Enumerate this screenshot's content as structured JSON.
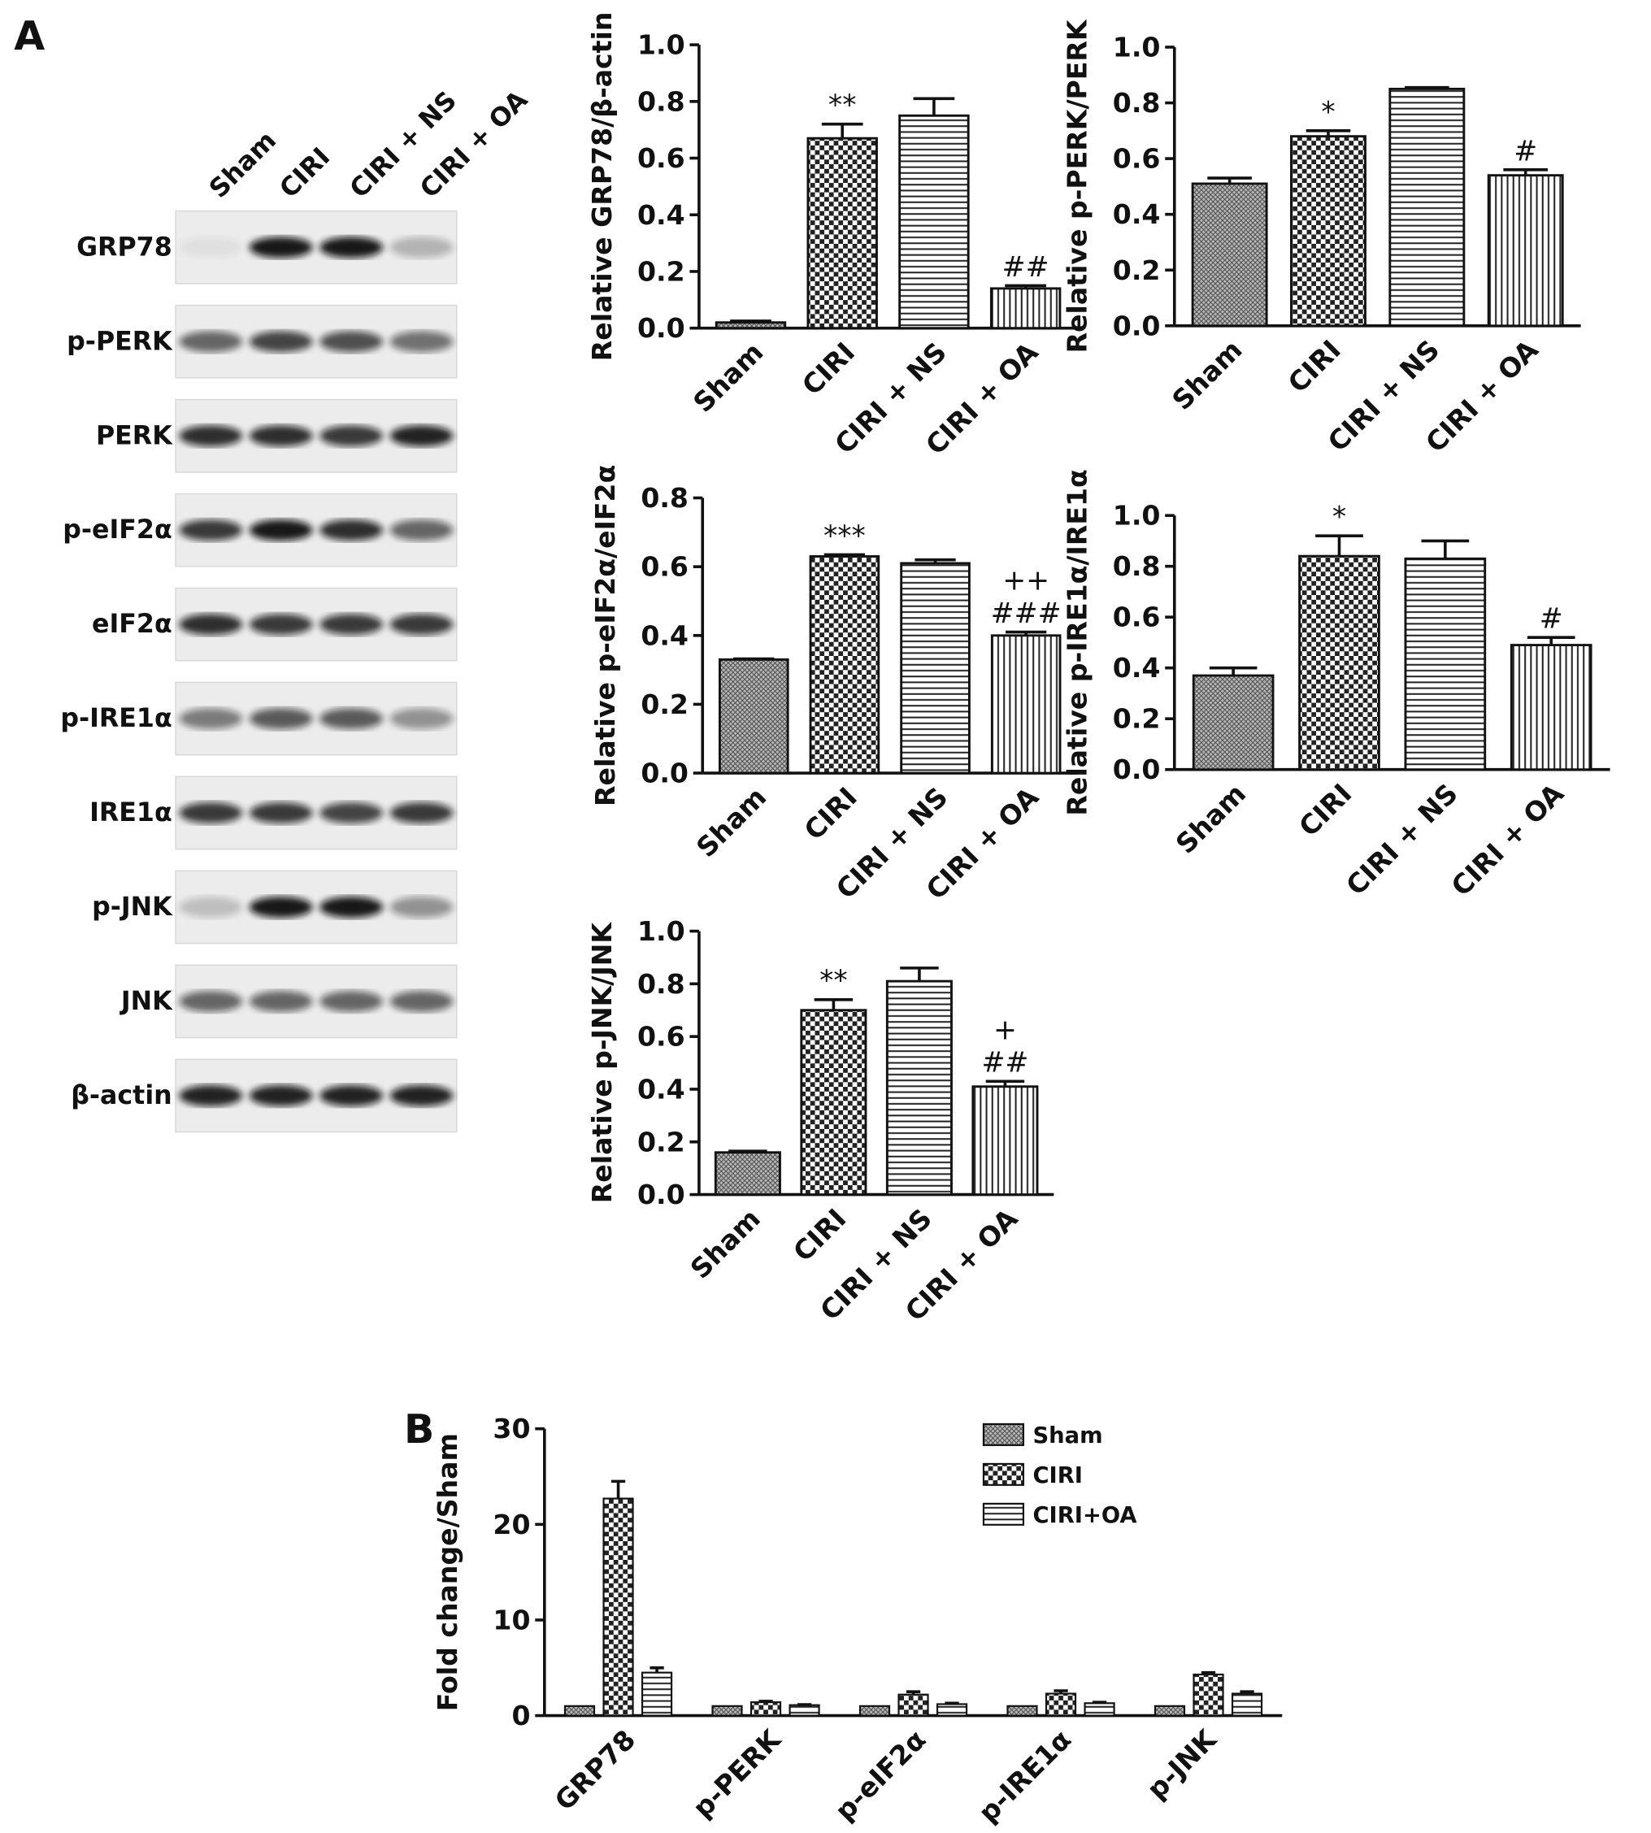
{
  "panel_labels": [
    "A",
    "B"
  ],
  "blot": {
    "lanes": [
      "Sham",
      "CIRI",
      "CIRI + NS",
      "CIRI + OA"
    ],
    "rows": [
      "GRP78",
      "p-PERK",
      "PERK",
      "p-eIF2α",
      "eIF2α",
      "p-IRE1α",
      "IRE1α",
      "p-JNK",
      "JNK",
      "β-actin"
    ]
  },
  "chart_data": [
    {
      "type": "bar",
      "y_label": "Relative GRP78/β-actin",
      "categories": [
        "Sham",
        "CIRI",
        "CIRI + NS",
        "CIRI + OA"
      ],
      "values": [
        0.02,
        0.67,
        0.75,
        0.14
      ],
      "errors": [
        0.005,
        0.05,
        0.06,
        0.01
      ],
      "patterns": [
        "dots",
        "checker",
        "hlines",
        "vlines"
      ],
      "annotations": [
        null,
        [
          "**"
        ],
        null,
        [
          "##"
        ]
      ],
      "ylim": [
        0,
        1
      ],
      "yticks": [
        {
          "value": 0,
          "label": "0.0"
        },
        0.2,
        0.4,
        0.6,
        0.8,
        {
          "value": 1,
          "label": "1.0"
        }
      ]
    },
    {
      "type": "bar",
      "y_label": "Relative p-PERK/PERK",
      "categories": [
        "Sham",
        "CIRI",
        "CIRI + NS",
        "CIRI + OA"
      ],
      "values": [
        0.51,
        0.68,
        0.85,
        0.54
      ],
      "errors": [
        0.02,
        0.02,
        0.005,
        0.02
      ],
      "patterns": [
        "dots",
        "checker",
        "hlines",
        "vlines"
      ],
      "annotations": [
        null,
        [
          "*"
        ],
        null,
        [
          "#"
        ]
      ],
      "ylim": [
        0,
        1
      ],
      "yticks": [
        {
          "value": 0,
          "label": "0.0"
        },
        0.2,
        0.4,
        0.6,
        0.8,
        {
          "value": 1,
          "label": "1.0"
        }
      ]
    },
    {
      "type": "bar",
      "y_label": "Relative p-eIF2α/eIF2α",
      "categories": [
        "Sham",
        "CIRI",
        "CIRI + NS",
        "CIRI + OA"
      ],
      "values": [
        0.33,
        0.63,
        0.61,
        0.4
      ],
      "errors": [
        0.002,
        0.005,
        0.01,
        0.01
      ],
      "patterns": [
        "dots",
        "checker",
        "hlines",
        "vlines"
      ],
      "annotations": [
        null,
        [
          "***"
        ],
        null,
        [
          "++",
          "###"
        ]
      ],
      "ylim": [
        0,
        0.8
      ],
      "yticks": [
        {
          "value": 0,
          "label": "0.0"
        },
        0.2,
        0.4,
        0.6,
        0.8
      ]
    },
    {
      "type": "bar",
      "y_label": "Relative p-IRE1α/IRE1α",
      "categories": [
        "Sham",
        "CIRI",
        "CIRI + NS",
        "CIRI + OA"
      ],
      "values": [
        0.37,
        0.84,
        0.83,
        0.49
      ],
      "errors": [
        0.03,
        0.08,
        0.07,
        0.03
      ],
      "patterns": [
        "dots",
        "checker",
        "hlines",
        "vlines"
      ],
      "annotations": [
        null,
        [
          "*"
        ],
        null,
        [
          "#"
        ]
      ],
      "ylim": [
        0,
        1
      ],
      "yticks": [
        {
          "value": 0,
          "label": "0.0"
        },
        0.2,
        0.4,
        0.6,
        0.8,
        {
          "value": 1,
          "label": "1.0"
        }
      ]
    },
    {
      "type": "bar",
      "y_label": "Relative p-JNK/JNK",
      "categories": [
        "Sham",
        "CIRI",
        "CIRI + NS",
        "CIRI + OA"
      ],
      "values": [
        0.16,
        0.7,
        0.81,
        0.41
      ],
      "errors": [
        0.005,
        0.04,
        0.05,
        0.02
      ],
      "patterns": [
        "dots",
        "checker",
        "hlines",
        "vlines"
      ],
      "annotations": [
        null,
        [
          "**"
        ],
        null,
        [
          "+",
          "##"
        ]
      ],
      "ylim": [
        0,
        1
      ],
      "yticks": [
        {
          "value": 0,
          "label": "0.0"
        },
        0.2,
        0.4,
        0.6,
        0.8,
        {
          "value": 1,
          "label": "1.0"
        }
      ]
    },
    {
      "type": "grouped_bar",
      "y_label": "Fold change/Sham",
      "categories": [
        "GRP78",
        "p-PERK",
        "p-eIF2α",
        "p-IRE1α",
        "p-JNK"
      ],
      "series": [
        {
          "name": "Sham",
          "pattern": "dots",
          "values": [
            1,
            1,
            1,
            1,
            1
          ]
        },
        {
          "name": "CIRI",
          "pattern": "checker",
          "values": [
            22.7,
            1.4,
            2.2,
            2.3,
            4.3
          ],
          "errors": [
            1.8,
            0.1,
            0.3,
            0.3,
            0.2
          ]
        },
        {
          "name": "CIRI+OA",
          "pattern": "hlines",
          "values": [
            4.5,
            1.1,
            1.2,
            1.3,
            2.3
          ],
          "errors": [
            0.5,
            0.05,
            0.1,
            0.1,
            0.2
          ]
        }
      ],
      "legend": "upper right",
      "ylim": [
        0,
        30
      ],
      "yticks": [
        0,
        10,
        20,
        30
      ]
    }
  ]
}
